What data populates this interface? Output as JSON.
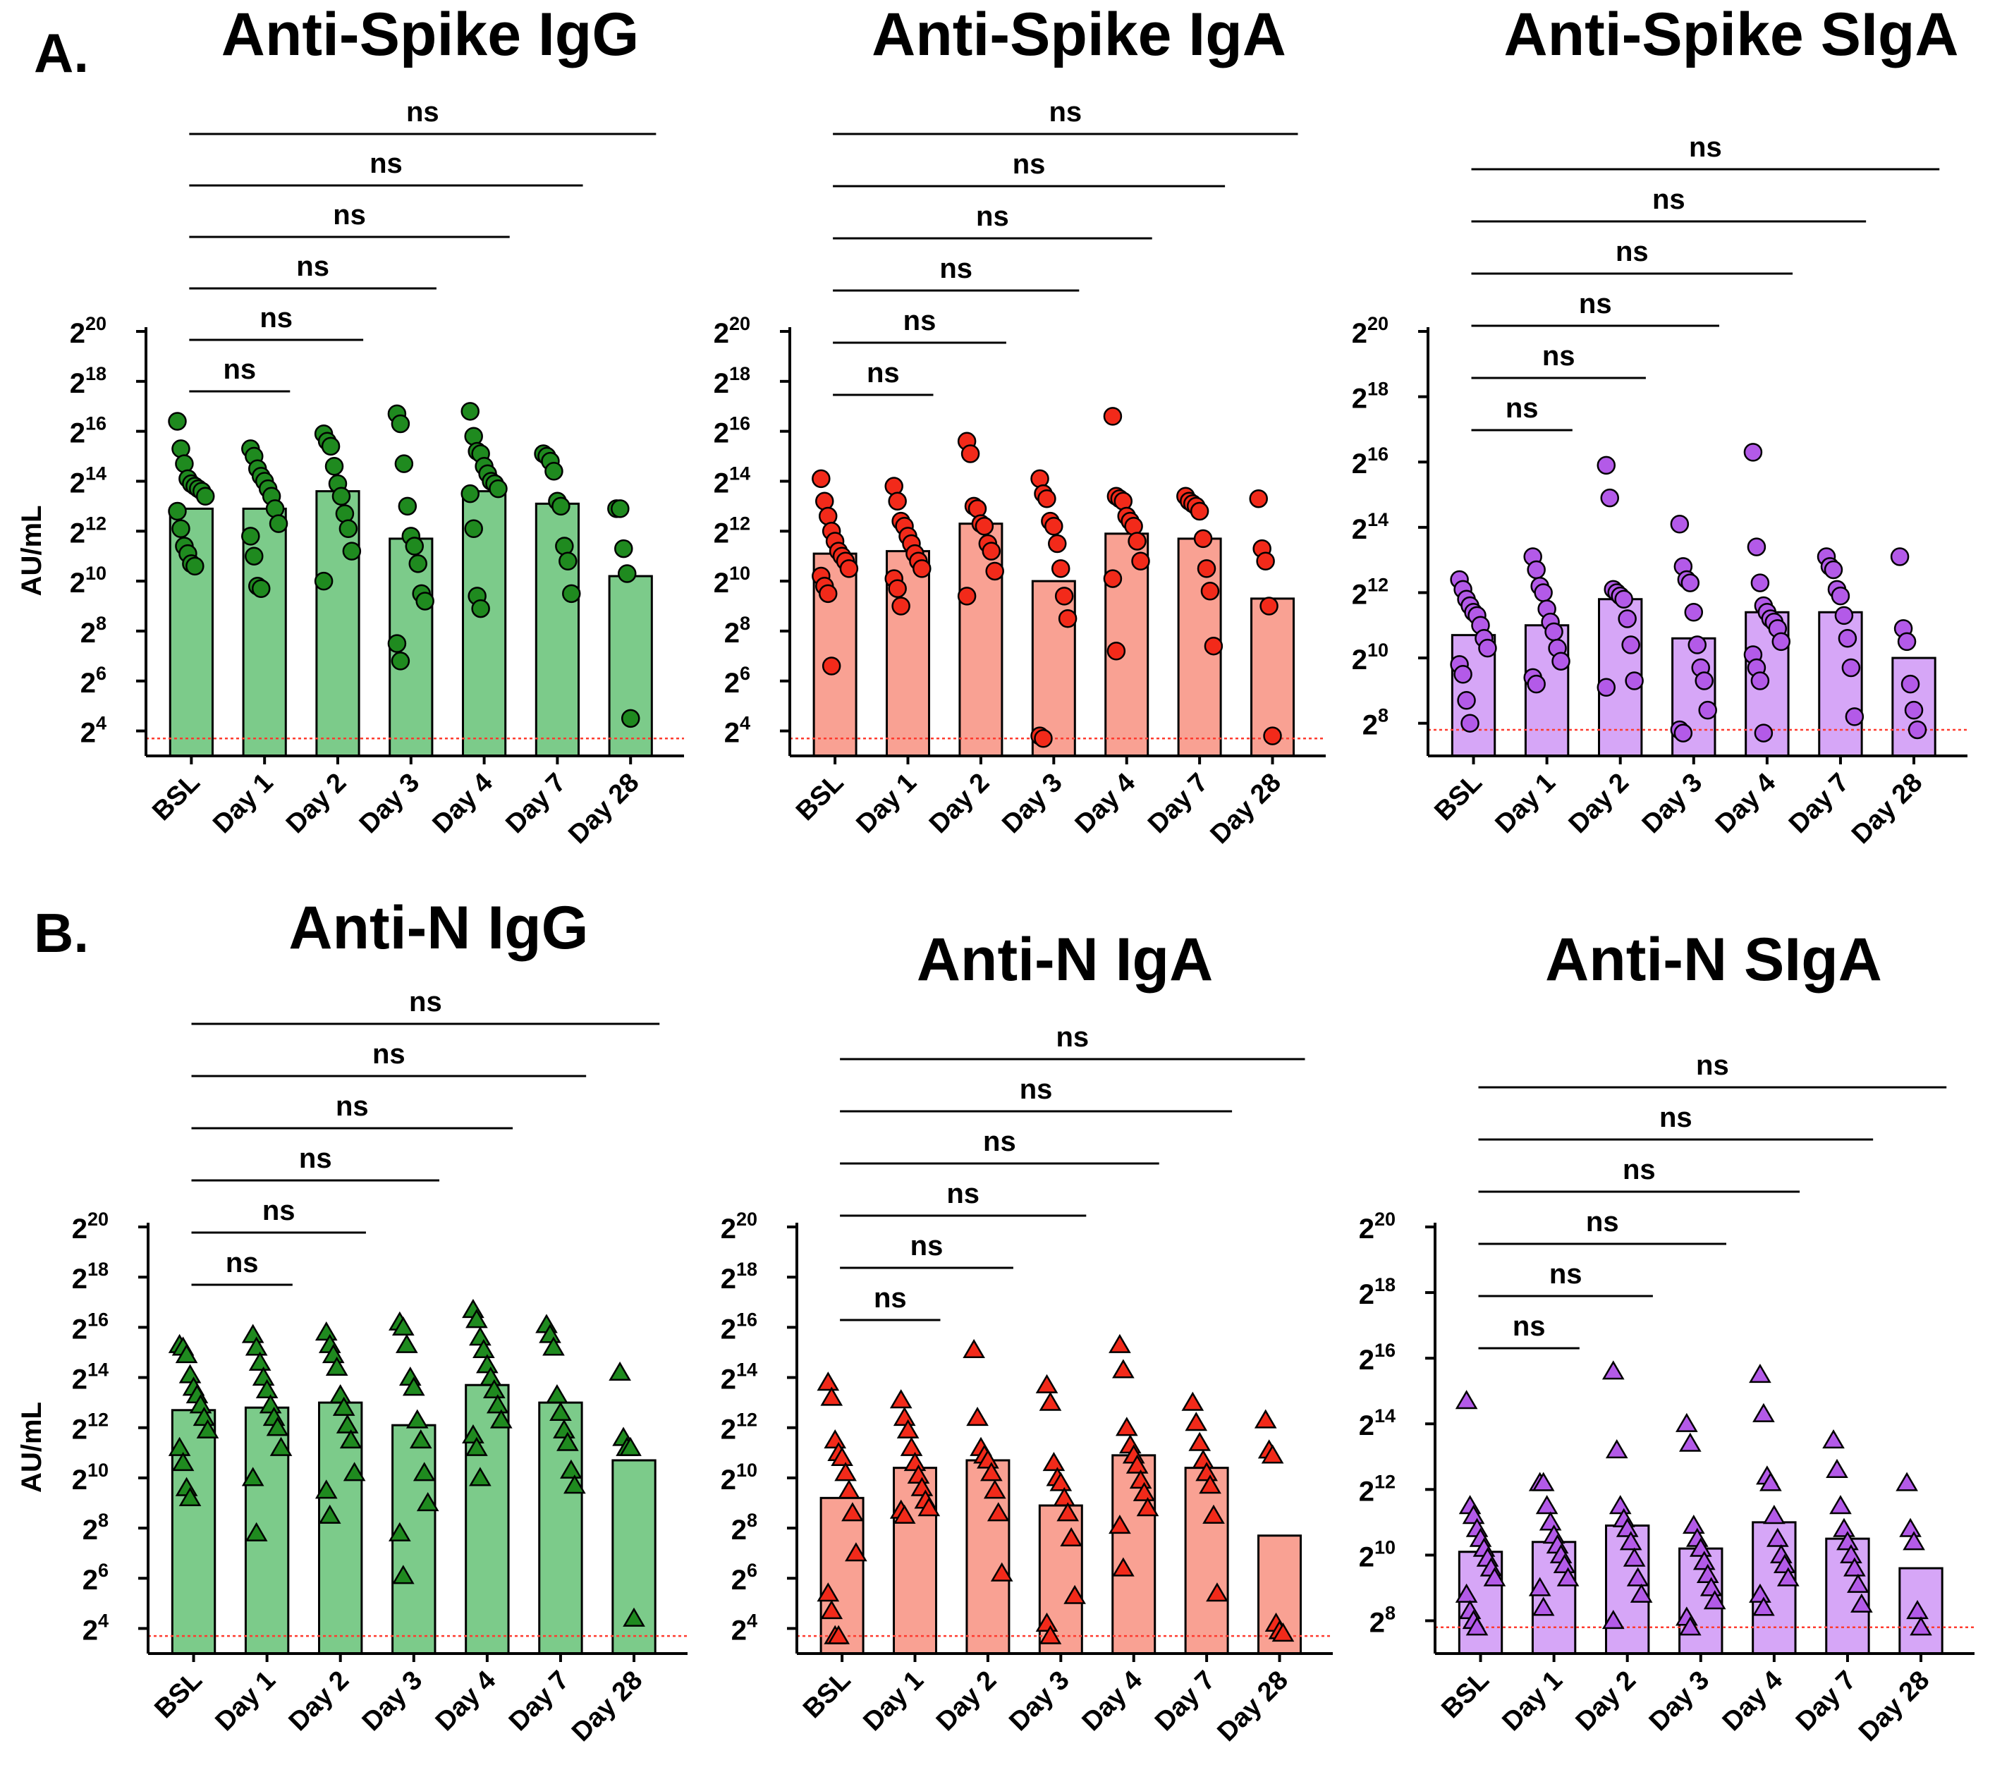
{
  "figure": {
    "panel_labels": [
      "A.",
      "B."
    ],
    "colors": {
      "green_bar": "#7ccb8a",
      "green_point": "#1f8a1f",
      "red_bar": "#f9a193",
      "red_point": "#f22a1a",
      "purple_bar": "#d6a6f7",
      "purple_point": "#b35ae8",
      "outline": "#000000",
      "lod_line": "#ff3b2f"
    }
  },
  "chart_data": [
    {
      "id": "anti-spike-igg",
      "type": "bar",
      "title": "Anti-Spike IgG",
      "ylabel": "AU/mL",
      "yscale": "log2",
      "ylim_exp": [
        3,
        20
      ],
      "ytick_base": "2",
      "yticks_exp": [
        4,
        6,
        8,
        10,
        12,
        14,
        16,
        18,
        20
      ],
      "categories": [
        "BSL",
        "Day 1",
        "Day 2",
        "Day 3",
        "Day 4",
        "Day 7",
        "Day 28"
      ],
      "values_exp": [
        12.9,
        12.9,
        13.6,
        11.7,
        13.6,
        13.1,
        10.2
      ],
      "points_exp": [
        [
          16.4,
          15.3,
          14.7,
          14.1,
          13.9,
          13.8,
          13.7,
          13.6,
          13.4,
          12.8,
          12.1,
          11.4,
          11.1,
          10.7,
          10.6
        ],
        [
          15.3,
          15.0,
          14.5,
          14.2,
          14.0,
          13.7,
          13.4,
          12.9,
          12.3,
          11.8,
          11.0,
          9.8,
          9.7
        ],
        [
          15.9,
          15.6,
          15.4,
          14.6,
          13.9,
          13.4,
          12.7,
          12.1,
          11.2,
          10.0
        ],
        [
          16.7,
          16.3,
          14.7,
          13.0,
          11.8,
          11.4,
          10.7,
          9.5,
          9.2,
          7.5,
          6.8
        ],
        [
          16.8,
          15.8,
          15.2,
          15.1,
          14.6,
          14.3,
          14.0,
          13.9,
          13.7,
          13.5,
          12.1,
          9.4,
          8.9
        ],
        [
          15.1,
          15.0,
          14.8,
          14.4,
          13.2,
          13.0,
          11.4,
          10.8,
          9.5
        ],
        [
          12.9,
          12.9,
          11.3,
          10.3,
          4.5
        ]
      ],
      "marker": "circle",
      "color_key": "green",
      "lod_exp": 3.7,
      "significance": [
        {
          "from": "BSL",
          "to": "Day 1",
          "label": "ns"
        },
        {
          "from": "BSL",
          "to": "Day 2",
          "label": "ns"
        },
        {
          "from": "BSL",
          "to": "Day 3",
          "label": "ns"
        },
        {
          "from": "BSL",
          "to": "Day 4",
          "label": "ns"
        },
        {
          "from": "BSL",
          "to": "Day 7",
          "label": "ns"
        },
        {
          "from": "BSL",
          "to": "Day 28",
          "label": "ns"
        }
      ]
    },
    {
      "id": "anti-spike-iga",
      "type": "bar",
      "title": "Anti-Spike IgA",
      "ylabel": "",
      "yscale": "log2",
      "ylim_exp": [
        3,
        20
      ],
      "ytick_base": "2",
      "yticks_exp": [
        4,
        6,
        8,
        10,
        12,
        14,
        16,
        18,
        20
      ],
      "categories": [
        "BSL",
        "Day 1",
        "Day 2",
        "Day 3",
        "Day 4",
        "Day 7",
        "Day 28"
      ],
      "values_exp": [
        11.1,
        11.2,
        12.3,
        10.0,
        11.9,
        11.7,
        9.3
      ],
      "points_exp": [
        [
          14.1,
          13.2,
          12.6,
          12.0,
          11.6,
          11.2,
          11.0,
          10.8,
          10.5,
          10.2,
          9.8,
          9.5,
          6.6
        ],
        [
          13.8,
          13.2,
          12.4,
          12.2,
          11.8,
          11.5,
          11.1,
          10.8,
          10.5,
          10.1,
          9.7,
          9.0
        ],
        [
          15.6,
          15.1,
          13.0,
          12.9,
          12.3,
          12.2,
          11.5,
          11.2,
          10.4,
          9.4
        ],
        [
          14.1,
          13.5,
          13.3,
          12.4,
          12.2,
          11.5,
          10.5,
          9.4,
          8.5,
          3.8,
          3.7
        ],
        [
          16.6,
          13.4,
          13.3,
          13.2,
          12.6,
          12.4,
          12.2,
          11.6,
          10.8,
          10.1,
          7.2
        ],
        [
          13.4,
          13.2,
          13.1,
          13.0,
          12.8,
          11.7,
          10.5,
          9.6,
          7.4
        ],
        [
          13.3,
          11.3,
          10.8,
          9.0,
          3.8
        ]
      ],
      "marker": "circle",
      "color_key": "red",
      "lod_exp": 3.7,
      "significance": [
        {
          "from": "BSL",
          "to": "Day 1",
          "label": "ns"
        },
        {
          "from": "BSL",
          "to": "Day 2",
          "label": "ns"
        },
        {
          "from": "BSL",
          "to": "Day 3",
          "label": "ns"
        },
        {
          "from": "BSL",
          "to": "Day 4",
          "label": "ns"
        },
        {
          "from": "BSL",
          "to": "Day 7",
          "label": "ns"
        },
        {
          "from": "BSL",
          "to": "Day 28",
          "label": "ns"
        }
      ]
    },
    {
      "id": "anti-spike-siga",
      "type": "bar",
      "title": "Anti-Spike SIgA",
      "ylabel": "",
      "yscale": "log2",
      "ylim_exp": [
        7,
        20
      ],
      "ytick_base": "2",
      "yticks_exp": [
        8,
        10,
        12,
        14,
        16,
        18,
        20
      ],
      "categories": [
        "BSL",
        "Day 1",
        "Day 2",
        "Day 3",
        "Day 4",
        "Day 7",
        "Day 28"
      ],
      "values_exp": [
        10.7,
        11.0,
        11.8,
        10.6,
        11.4,
        11.4,
        10.0
      ],
      "points_exp": [
        [
          12.4,
          12.1,
          11.8,
          11.6,
          11.4,
          11.3,
          11.0,
          10.6,
          10.3,
          9.8,
          9.5,
          8.7,
          8.0
        ],
        [
          13.1,
          12.7,
          12.2,
          12.0,
          11.5,
          11.1,
          10.8,
          10.3,
          9.9,
          9.4,
          9.2
        ],
        [
          15.9,
          14.9,
          12.1,
          12.0,
          11.9,
          11.8,
          11.2,
          10.4,
          9.3,
          9.1
        ],
        [
          14.1,
          12.8,
          12.4,
          12.3,
          11.4,
          10.4,
          9.7,
          9.3,
          8.4,
          7.8,
          7.7
        ],
        [
          16.3,
          13.4,
          12.3,
          11.6,
          11.4,
          11.2,
          11.1,
          10.9,
          10.5,
          10.1,
          9.7,
          9.3,
          7.7
        ],
        [
          13.1,
          12.8,
          12.7,
          12.1,
          11.9,
          11.3,
          10.6,
          9.7,
          8.2
        ],
        [
          13.1,
          10.9,
          10.5,
          9.2,
          8.4,
          7.8
        ]
      ],
      "marker": "circle",
      "color_key": "purple",
      "lod_exp": 7.8,
      "significance": [
        {
          "from": "BSL",
          "to": "Day 1",
          "label": "ns"
        },
        {
          "from": "BSL",
          "to": "Day 2",
          "label": "ns"
        },
        {
          "from": "BSL",
          "to": "Day 3",
          "label": "ns"
        },
        {
          "from": "BSL",
          "to": "Day 4",
          "label": "ns"
        },
        {
          "from": "BSL",
          "to": "Day 7",
          "label": "ns"
        },
        {
          "from": "BSL",
          "to": "Day 28",
          "label": "ns"
        }
      ]
    },
    {
      "id": "anti-n-igg",
      "type": "bar",
      "title": "Anti-N IgG",
      "ylabel": "AU/mL",
      "yscale": "log2",
      "ylim_exp": [
        3,
        20
      ],
      "ytick_base": "2",
      "yticks_exp": [
        4,
        6,
        8,
        10,
        12,
        14,
        16,
        18,
        20
      ],
      "categories": [
        "BSL",
        "Day 1",
        "Day 2",
        "Day 3",
        "Day 4",
        "Day 7",
        "Day 28"
      ],
      "values_exp": [
        12.7,
        12.8,
        13.0,
        12.1,
        13.7,
        13.0,
        10.7
      ],
      "points_exp": [
        [
          15.3,
          15.2,
          14.9,
          14.1,
          13.6,
          13.3,
          12.9,
          12.4,
          11.9,
          11.2,
          10.6,
          9.6,
          9.2
        ],
        [
          15.7,
          15.2,
          14.6,
          14.0,
          13.5,
          12.9,
          12.4,
          12.0,
          11.2,
          10.0,
          7.8
        ],
        [
          15.8,
          15.3,
          14.9,
          14.4,
          13.3,
          12.8,
          12.1,
          11.5,
          10.2,
          9.5,
          8.5
        ],
        [
          16.2,
          16.0,
          15.3,
          14.0,
          13.6,
          12.3,
          11.5,
          10.2,
          9.0,
          7.8,
          6.1
        ],
        [
          16.7,
          16.3,
          15.6,
          15.1,
          14.5,
          14.0,
          13.5,
          12.9,
          12.3,
          11.7,
          11.2,
          10.0
        ],
        [
          16.1,
          15.7,
          15.2,
          13.3,
          12.6,
          11.9,
          11.4,
          10.3,
          9.7
        ],
        [
          14.2,
          11.6,
          11.2,
          11.2,
          4.4
        ]
      ],
      "marker": "triangle",
      "color_key": "green",
      "lod_exp": 3.7,
      "significance": [
        {
          "from": "BSL",
          "to": "Day 1",
          "label": "ns"
        },
        {
          "from": "BSL",
          "to": "Day 2",
          "label": "ns"
        },
        {
          "from": "BSL",
          "to": "Day 3",
          "label": "ns"
        },
        {
          "from": "BSL",
          "to": "Day 4",
          "label": "ns"
        },
        {
          "from": "BSL",
          "to": "Day 7",
          "label": "ns"
        },
        {
          "from": "BSL",
          "to": "Day 28",
          "label": "ns"
        }
      ]
    },
    {
      "id": "anti-n-iga",
      "type": "bar",
      "title": "Anti-N IgA",
      "ylabel": "",
      "yscale": "log2",
      "ylim_exp": [
        3,
        20
      ],
      "ytick_base": "2",
      "yticks_exp": [
        4,
        6,
        8,
        10,
        12,
        14,
        16,
        18,
        20
      ],
      "categories": [
        "BSL",
        "Day 1",
        "Day 2",
        "Day 3",
        "Day 4",
        "Day 7",
        "Day 28"
      ],
      "values_exp": [
        9.2,
        10.4,
        10.7,
        8.9,
        10.9,
        10.4,
        7.7
      ],
      "points_exp": [
        [
          13.8,
          13.2,
          11.5,
          11.0,
          10.8,
          10.2,
          9.5,
          8.6,
          7.0,
          5.4,
          4.7,
          3.7,
          3.7
        ],
        [
          13.1,
          12.4,
          11.9,
          11.2,
          10.6,
          10.1,
          9.6,
          9.1,
          8.8,
          8.7,
          8.5
        ],
        [
          15.1,
          12.4,
          11.2,
          10.9,
          10.7,
          10.2,
          9.5,
          8.6,
          6.2
        ],
        [
          13.7,
          13.0,
          10.6,
          10.0,
          9.8,
          9.2,
          8.6,
          7.6,
          5.3,
          4.2,
          3.7
        ],
        [
          15.3,
          14.3,
          12.0,
          11.3,
          10.9,
          10.5,
          9.9,
          9.4,
          8.8,
          8.1,
          6.4
        ],
        [
          13.0,
          12.2,
          11.4,
          10.7,
          10.2,
          9.7,
          8.5,
          5.4
        ],
        [
          12.3,
          11.1,
          10.9,
          4.2,
          3.9,
          3.8
        ]
      ],
      "marker": "triangle",
      "color_key": "red",
      "lod_exp": 3.7,
      "significance": [
        {
          "from": "BSL",
          "to": "Day 1",
          "label": "ns"
        },
        {
          "from": "BSL",
          "to": "Day 2",
          "label": "ns"
        },
        {
          "from": "BSL",
          "to": "Day 3",
          "label": "ns"
        },
        {
          "from": "BSL",
          "to": "Day 4",
          "label": "ns"
        },
        {
          "from": "BSL",
          "to": "Day 7",
          "label": "ns"
        },
        {
          "from": "BSL",
          "to": "Day 28",
          "label": "ns"
        }
      ]
    },
    {
      "id": "anti-n-siga",
      "type": "bar",
      "title": "Anti-N SIgA",
      "ylabel": "",
      "yscale": "log2",
      "ylim_exp": [
        7,
        20
      ],
      "ytick_base": "2",
      "yticks_exp": [
        8,
        10,
        12,
        14,
        16,
        18,
        20
      ],
      "categories": [
        "BSL",
        "Day 1",
        "Day 2",
        "Day 3",
        "Day 4",
        "Day 7",
        "Day 28"
      ],
      "values_exp": [
        10.1,
        10.4,
        10.9,
        10.2,
        11.0,
        10.5,
        9.6
      ],
      "points_exp": [
        [
          14.7,
          11.5,
          11.2,
          10.8,
          10.5,
          10.2,
          9.9,
          9.6,
          9.3,
          8.8,
          8.3,
          8.0,
          7.8
        ],
        [
          12.2,
          12.2,
          11.5,
          11.0,
          10.6,
          10.3,
          10.0,
          9.7,
          9.3,
          9.0,
          8.4
        ],
        [
          15.6,
          13.2,
          11.5,
          11.1,
          10.8,
          10.4,
          9.9,
          9.3,
          8.8,
          8.0
        ],
        [
          14.0,
          13.4,
          10.9,
          10.5,
          10.2,
          9.8,
          9.4,
          9.0,
          8.6,
          8.1,
          7.8
        ],
        [
          15.5,
          14.3,
          12.4,
          12.2,
          11.2,
          10.5,
          10.0,
          9.7,
          9.3,
          8.8,
          8.4
        ],
        [
          13.5,
          12.6,
          11.5,
          10.8,
          10.4,
          10.0,
          9.6,
          9.1,
          8.5
        ],
        [
          12.2,
          10.8,
          10.4,
          8.3,
          7.8
        ]
      ],
      "marker": "triangle",
      "color_key": "purple",
      "lod_exp": 7.8,
      "significance": [
        {
          "from": "BSL",
          "to": "Day 1",
          "label": "ns"
        },
        {
          "from": "BSL",
          "to": "Day 2",
          "label": "ns"
        },
        {
          "from": "BSL",
          "to": "Day 3",
          "label": "ns"
        },
        {
          "from": "BSL",
          "to": "Day 4",
          "label": "ns"
        },
        {
          "from": "BSL",
          "to": "Day 7",
          "label": "ns"
        },
        {
          "from": "BSL",
          "to": "Day 28",
          "label": "ns"
        }
      ]
    }
  ]
}
